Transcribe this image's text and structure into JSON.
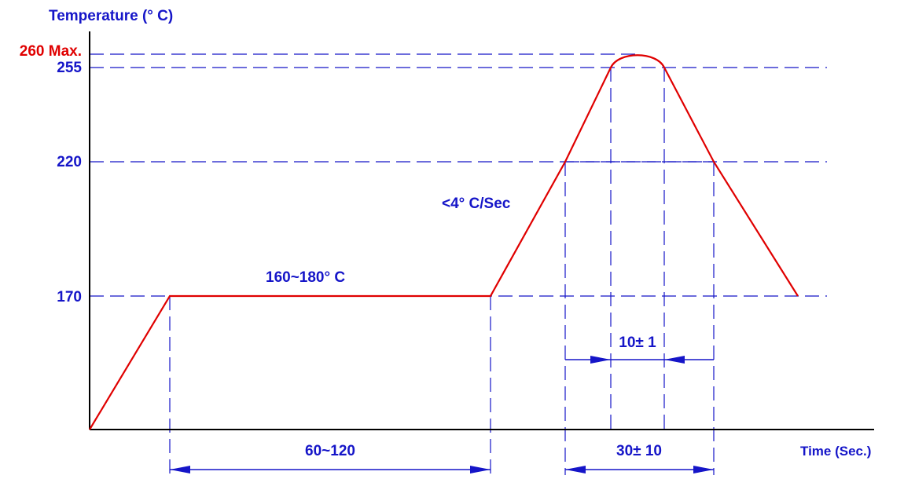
{
  "chart_data": {
    "type": "line",
    "ylabel": "Temperature (° C)",
    "xlabel": "Time (Sec.)",
    "ylim": [
      130,
      264
    ],
    "y_ticks": [
      {
        "value": 260,
        "label": "260 Max.",
        "color": "#e00000"
      },
      {
        "value": 255,
        "label": "255",
        "color": "#1515c8"
      },
      {
        "value": 220,
        "label": "220",
        "color": "#1515c8"
      },
      {
        "value": 170,
        "label": "170",
        "color": "#1515c8"
      }
    ],
    "series": [
      {
        "color": "#e00000",
        "points": [
          [
            0,
            130
          ],
          [
            1,
            170
          ],
          [
            2,
            170
          ],
          [
            3,
            220
          ],
          [
            4,
            255
          ],
          [
            5,
            260
          ],
          [
            6,
            255
          ],
          [
            7,
            220
          ],
          [
            8,
            170
          ]
        ]
      }
    ],
    "annotations": {
      "preheat": "160~180° C",
      "ramp_rate": "<4° C/Sec",
      "preheat_time": "60~120",
      "time_above_220": "30± 10",
      "peak_time": "10± 1"
    },
    "colors": {
      "guide": "#1515c8",
      "profile": "#e00000",
      "axis": "#000000"
    }
  }
}
